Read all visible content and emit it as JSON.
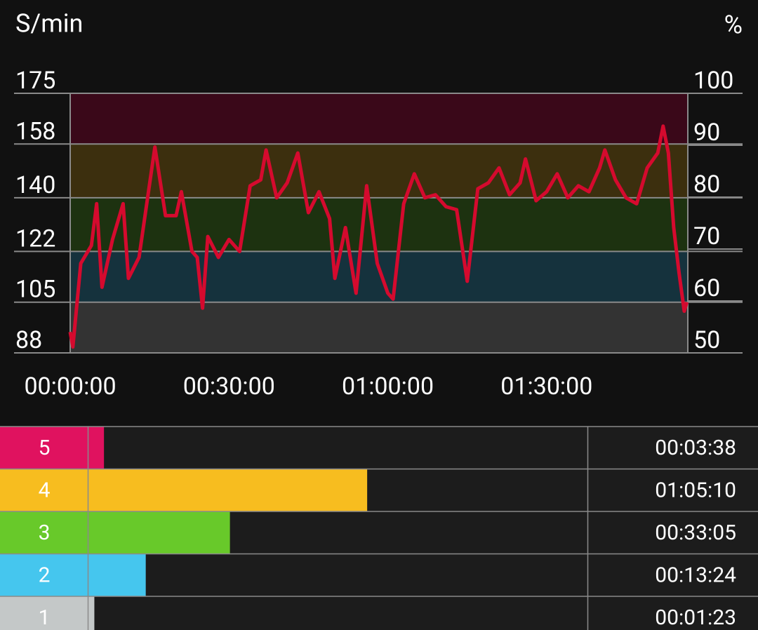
{
  "chart_data": [
    {
      "type": "line",
      "ylabel": "S/min",
      "y2label": "%",
      "x": [
        0,
        0.5,
        2,
        4,
        5,
        6,
        8,
        10,
        11,
        13,
        16,
        18,
        20,
        21,
        23,
        24,
        25,
        26,
        28,
        30,
        32,
        34,
        36,
        37,
        39,
        41,
        43,
        45,
        47,
        49,
        50,
        52,
        54,
        56,
        58,
        60,
        61,
        63,
        65,
        67,
        69,
        71,
        73,
        75,
        77,
        79,
        81,
        83,
        85,
        86,
        88,
        90,
        92,
        94,
        96,
        98,
        100,
        101,
        103,
        105,
        107,
        109,
        111,
        112,
        113,
        114,
        115,
        116,
        116.5
      ],
      "series": [
        {
          "name": "S/min",
          "color": "#d50a2e",
          "values": [
            95,
            90,
            118,
            124,
            138,
            110,
            126,
            138,
            113,
            120,
            157,
            134,
            134,
            142,
            122,
            120,
            103,
            127,
            120,
            126,
            122,
            144,
            146,
            156,
            140,
            145,
            155,
            135,
            142,
            133,
            113,
            130,
            108,
            144,
            118,
            108,
            106,
            138,
            148,
            140,
            141,
            137,
            136,
            112,
            143,
            145,
            150,
            141,
            145,
            153,
            139,
            142,
            148,
            140,
            144,
            142,
            150,
            156,
            146,
            140,
            138,
            150,
            155,
            164,
            155,
            130,
            115,
            102,
            105
          ]
        }
      ],
      "xlim": [
        0,
        116.67
      ],
      "xticks": [
        {
          "value": 0,
          "label": "00:00:00"
        },
        {
          "value": 30,
          "label": "00:30:00"
        },
        {
          "value": 60,
          "label": "01:00:00"
        },
        {
          "value": 90,
          "label": "01:30:00"
        }
      ],
      "ylim": [
        88,
        175
      ],
      "yticks": [
        88,
        105,
        122,
        140,
        158,
        175
      ],
      "y2lim": [
        50,
        100
      ],
      "y2ticks": [
        50,
        60,
        70,
        80,
        90,
        100
      ],
      "band_colors": [
        "#333333",
        "#15323d",
        "#1d3210",
        "#3c2f0e",
        "#3a0819"
      ],
      "grid": true
    },
    {
      "type": "hbar",
      "categories": [
        "5",
        "4",
        "3",
        "2",
        "1"
      ],
      "colors": [
        "#e0125f",
        "#f7bd1f",
        "#68c92a",
        "#45c6ee",
        "#c4c8c8"
      ],
      "values": [
        3.633,
        65.167,
        33.083,
        13.4,
        1.383
      ],
      "value_labels": [
        "00:03:38",
        "01:05:10",
        "00:33:05",
        "00:13:24",
        "00:01:23"
      ],
      "xlim": [
        0,
        116.67
      ]
    }
  ]
}
